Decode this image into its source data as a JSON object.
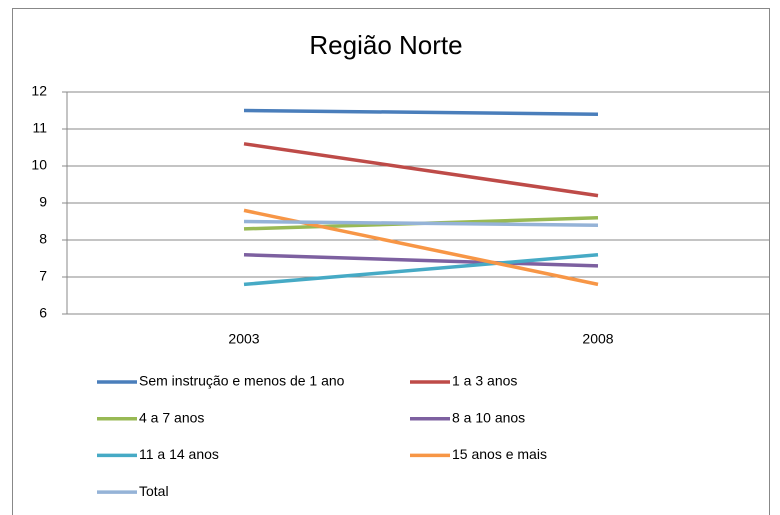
{
  "chart_data": {
    "type": "line",
    "title": "Região Norte",
    "categories": [
      "2003",
      "2008"
    ],
    "series": [
      {
        "name": "Sem instrução e menos de 1 ano",
        "color": "#4a7ebb",
        "values": [
          11.5,
          11.4
        ]
      },
      {
        "name": "1 a 3 anos",
        "color": "#be4b48",
        "values": [
          10.6,
          9.2
        ]
      },
      {
        "name": "4 a 7 anos",
        "color": "#98b954",
        "values": [
          8.3,
          8.6
        ]
      },
      {
        "name": "8 a 10 anos",
        "color": "#7d60a0",
        "values": [
          7.6,
          7.3
        ]
      },
      {
        "name": "11 a 14 anos",
        "color": "#46aac5",
        "values": [
          6.8,
          7.6
        ]
      },
      {
        "name": "15 anos e mais",
        "color": "#f79646",
        "values": [
          8.8,
          6.8
        ]
      },
      {
        "name": "Total",
        "color": "#95b3d7",
        "values": [
          8.5,
          8.4
        ]
      }
    ],
    "ylim": [
      6,
      12
    ],
    "yticks": [
      6,
      7,
      8,
      9,
      10,
      11,
      12
    ],
    "grid": true,
    "legend": "bottom"
  }
}
